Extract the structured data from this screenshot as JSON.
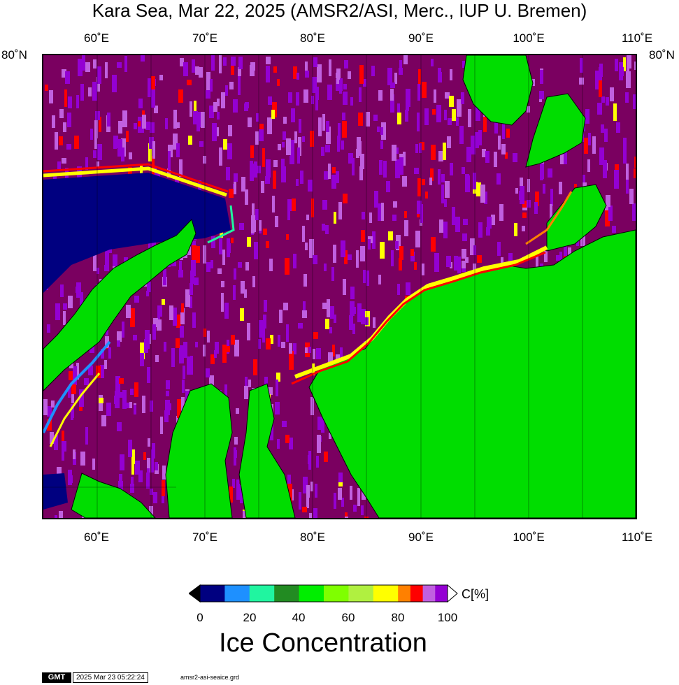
{
  "title": "Kara Sea, Mar 22, 2025 (AMSR2/ASI, Merc., IUP U. Bremen)",
  "map": {
    "lon_min": 55,
    "lon_max": 110,
    "lon_ticks": [
      "60˚E",
      "70˚E",
      "80˚E",
      "90˚E",
      "100˚E",
      "110˚E"
    ],
    "lon_tick_values": [
      60,
      70,
      80,
      90,
      100,
      110
    ],
    "lat_label_left": "80˚N",
    "lat_label_right": "80˚N",
    "land_color": "#00dd00",
    "ice_color": "#7a0060",
    "open_water_color": "#000080"
  },
  "colorbar": {
    "title": "Ice Concentration",
    "unit": "C[%]",
    "tick_labels": [
      "0",
      "20",
      "40",
      "60",
      "80",
      "100"
    ],
    "tick_values": [
      0,
      20,
      40,
      60,
      80,
      100
    ],
    "colors": [
      "#000080",
      "#1e90ff",
      "#20f5a0",
      "#228b22",
      "#00ee00",
      "#7fff00",
      "#b0f040",
      "#ffff00",
      "#ff8000",
      "#ff0000",
      "#c060e0",
      "#9400d3",
      "#7a0060"
    ],
    "bins": [
      [
        0,
        10
      ],
      [
        10,
        20
      ],
      [
        20,
        30
      ],
      [
        30,
        40
      ],
      [
        40,
        50
      ],
      [
        50,
        60
      ],
      [
        60,
        70
      ],
      [
        70,
        80
      ],
      [
        80,
        85
      ],
      [
        85,
        90
      ],
      [
        90,
        95
      ],
      [
        95,
        100
      ]
    ]
  },
  "footer": {
    "logo": "GMT",
    "timestamp": "2025 Mar 23 05:22:24",
    "grid_file": "amsr2-asi-seaice.grd"
  }
}
